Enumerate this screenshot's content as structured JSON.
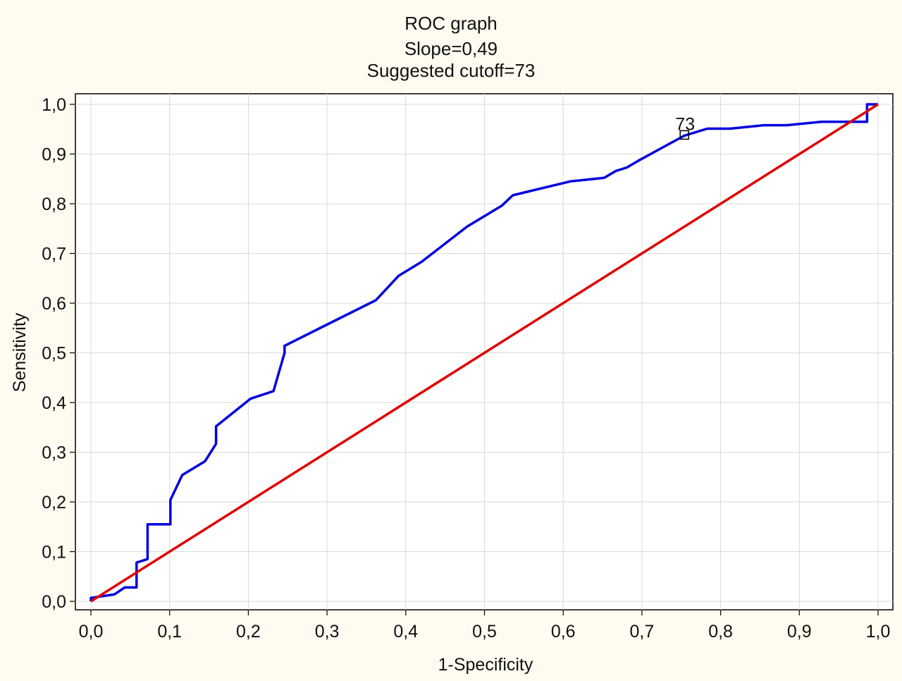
{
  "chart_data": {
    "type": "line",
    "title": "ROC graph",
    "subtitle_lines": [
      "Slope=0,49",
      "Suggested cutoff=73"
    ],
    "xlabel": "1-Specificity",
    "ylabel": "Sensitivity",
    "xlim": [
      0.0,
      1.0
    ],
    "ylim": [
      0.0,
      1.0
    ],
    "x_ticks": [
      "0,0",
      "0,1",
      "0,2",
      "0,3",
      "0,4",
      "0,5",
      "0,6",
      "0,7",
      "0,8",
      "0,9",
      "1,0"
    ],
    "y_ticks": [
      "0,0",
      "0,1",
      "0,2",
      "0,3",
      "0,4",
      "0,5",
      "0,6",
      "0,7",
      "0,8",
      "0,9",
      "1,0"
    ],
    "grid": true,
    "series": [
      {
        "color": "#0000dd",
        "x": [
          0.0,
          0.0,
          0.03,
          0.043,
          0.058,
          0.058,
          0.072,
          0.072,
          0.101,
          0.101,
          0.116,
          0.145,
          0.159,
          0.159,
          0.203,
          0.232,
          0.246,
          0.246,
          0.29,
          0.362,
          0.391,
          0.42,
          0.478,
          0.522,
          0.536,
          0.609,
          0.652,
          0.667,
          0.681,
          0.696,
          0.754,
          0.783,
          0.812,
          0.855,
          0.884,
          0.928,
          0.986,
          0.986,
          1.0
        ],
        "y": [
          0.0,
          0.007,
          0.014,
          0.028,
          0.028,
          0.078,
          0.085,
          0.155,
          0.155,
          0.204,
          0.254,
          0.282,
          0.317,
          0.352,
          0.408,
          0.423,
          0.5,
          0.514,
          0.549,
          0.606,
          0.655,
          0.683,
          0.754,
          0.796,
          0.817,
          0.845,
          0.852,
          0.866,
          0.873,
          0.887,
          0.937,
          0.951,
          0.951,
          0.958,
          0.958,
          0.965,
          0.965,
          1.0,
          1.0
        ]
      },
      {
        "color": "#e00000",
        "x": [
          0.0,
          1.0
        ],
        "y": [
          0.0,
          1.0
        ]
      }
    ],
    "annotation": {
      "label": "73",
      "x": 0.754,
      "y": 0.937,
      "marker": "square"
    }
  }
}
